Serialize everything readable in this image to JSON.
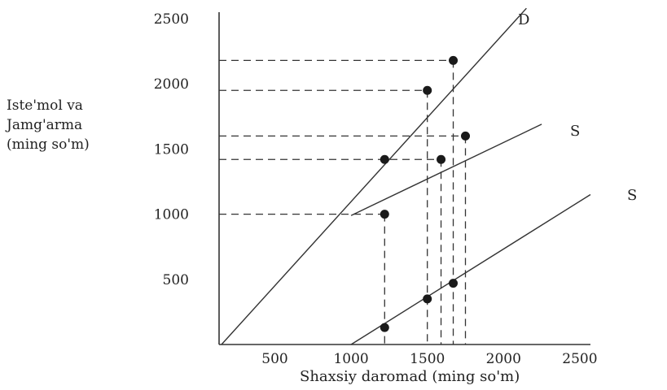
{
  "chart_data": {
    "type": "line",
    "title": "",
    "xlabel": "Shaxsiy daromad (ming so'm)",
    "ylabel_lines": [
      "Iste'mol va",
      "Jamg'arma",
      "(ming so'm)"
    ],
    "x_ticks": [
      500,
      1000,
      1500,
      2000,
      2500
    ],
    "y_ticks": [
      500,
      1000,
      1500,
      2000,
      2500
    ],
    "xlim": [
      150,
      2570
    ],
    "ylim": [
      0,
      2550
    ],
    "grid": false,
    "colors": {
      "line": "#333333",
      "points": "#1a1a1a",
      "dash": "#333333"
    },
    "series": [
      {
        "name": "D",
        "x": [
          150,
          2150
        ],
        "y": [
          0,
          2580
        ]
      },
      {
        "name": "S",
        "x": [
          1000,
          2250
        ],
        "y": [
          990,
          1690
        ]
      },
      {
        "name": "S",
        "x": [
          1000,
          2570
        ],
        "y": [
          0,
          1150
        ]
      }
    ],
    "points": [
      {
        "x": 1500,
        "y": 1950
      },
      {
        "x": 1670,
        "y": 2180
      },
      {
        "x": 1220,
        "y": 1420
      },
      {
        "x": 1220,
        "y": 1000
      },
      {
        "x": 1590,
        "y": 1420
      },
      {
        "x": 1750,
        "y": 1600
      },
      {
        "x": 1220,
        "y": 130
      },
      {
        "x": 1500,
        "y": 350
      },
      {
        "x": 1670,
        "y": 470
      }
    ],
    "guides": [
      {
        "y": 2180,
        "x": 1670
      },
      {
        "y": 1950,
        "x": 1500
      },
      {
        "y": 1600,
        "x": 1750
      },
      {
        "y": 1420,
        "x": 1590
      },
      {
        "y": 1000,
        "x": 1220
      }
    ]
  }
}
